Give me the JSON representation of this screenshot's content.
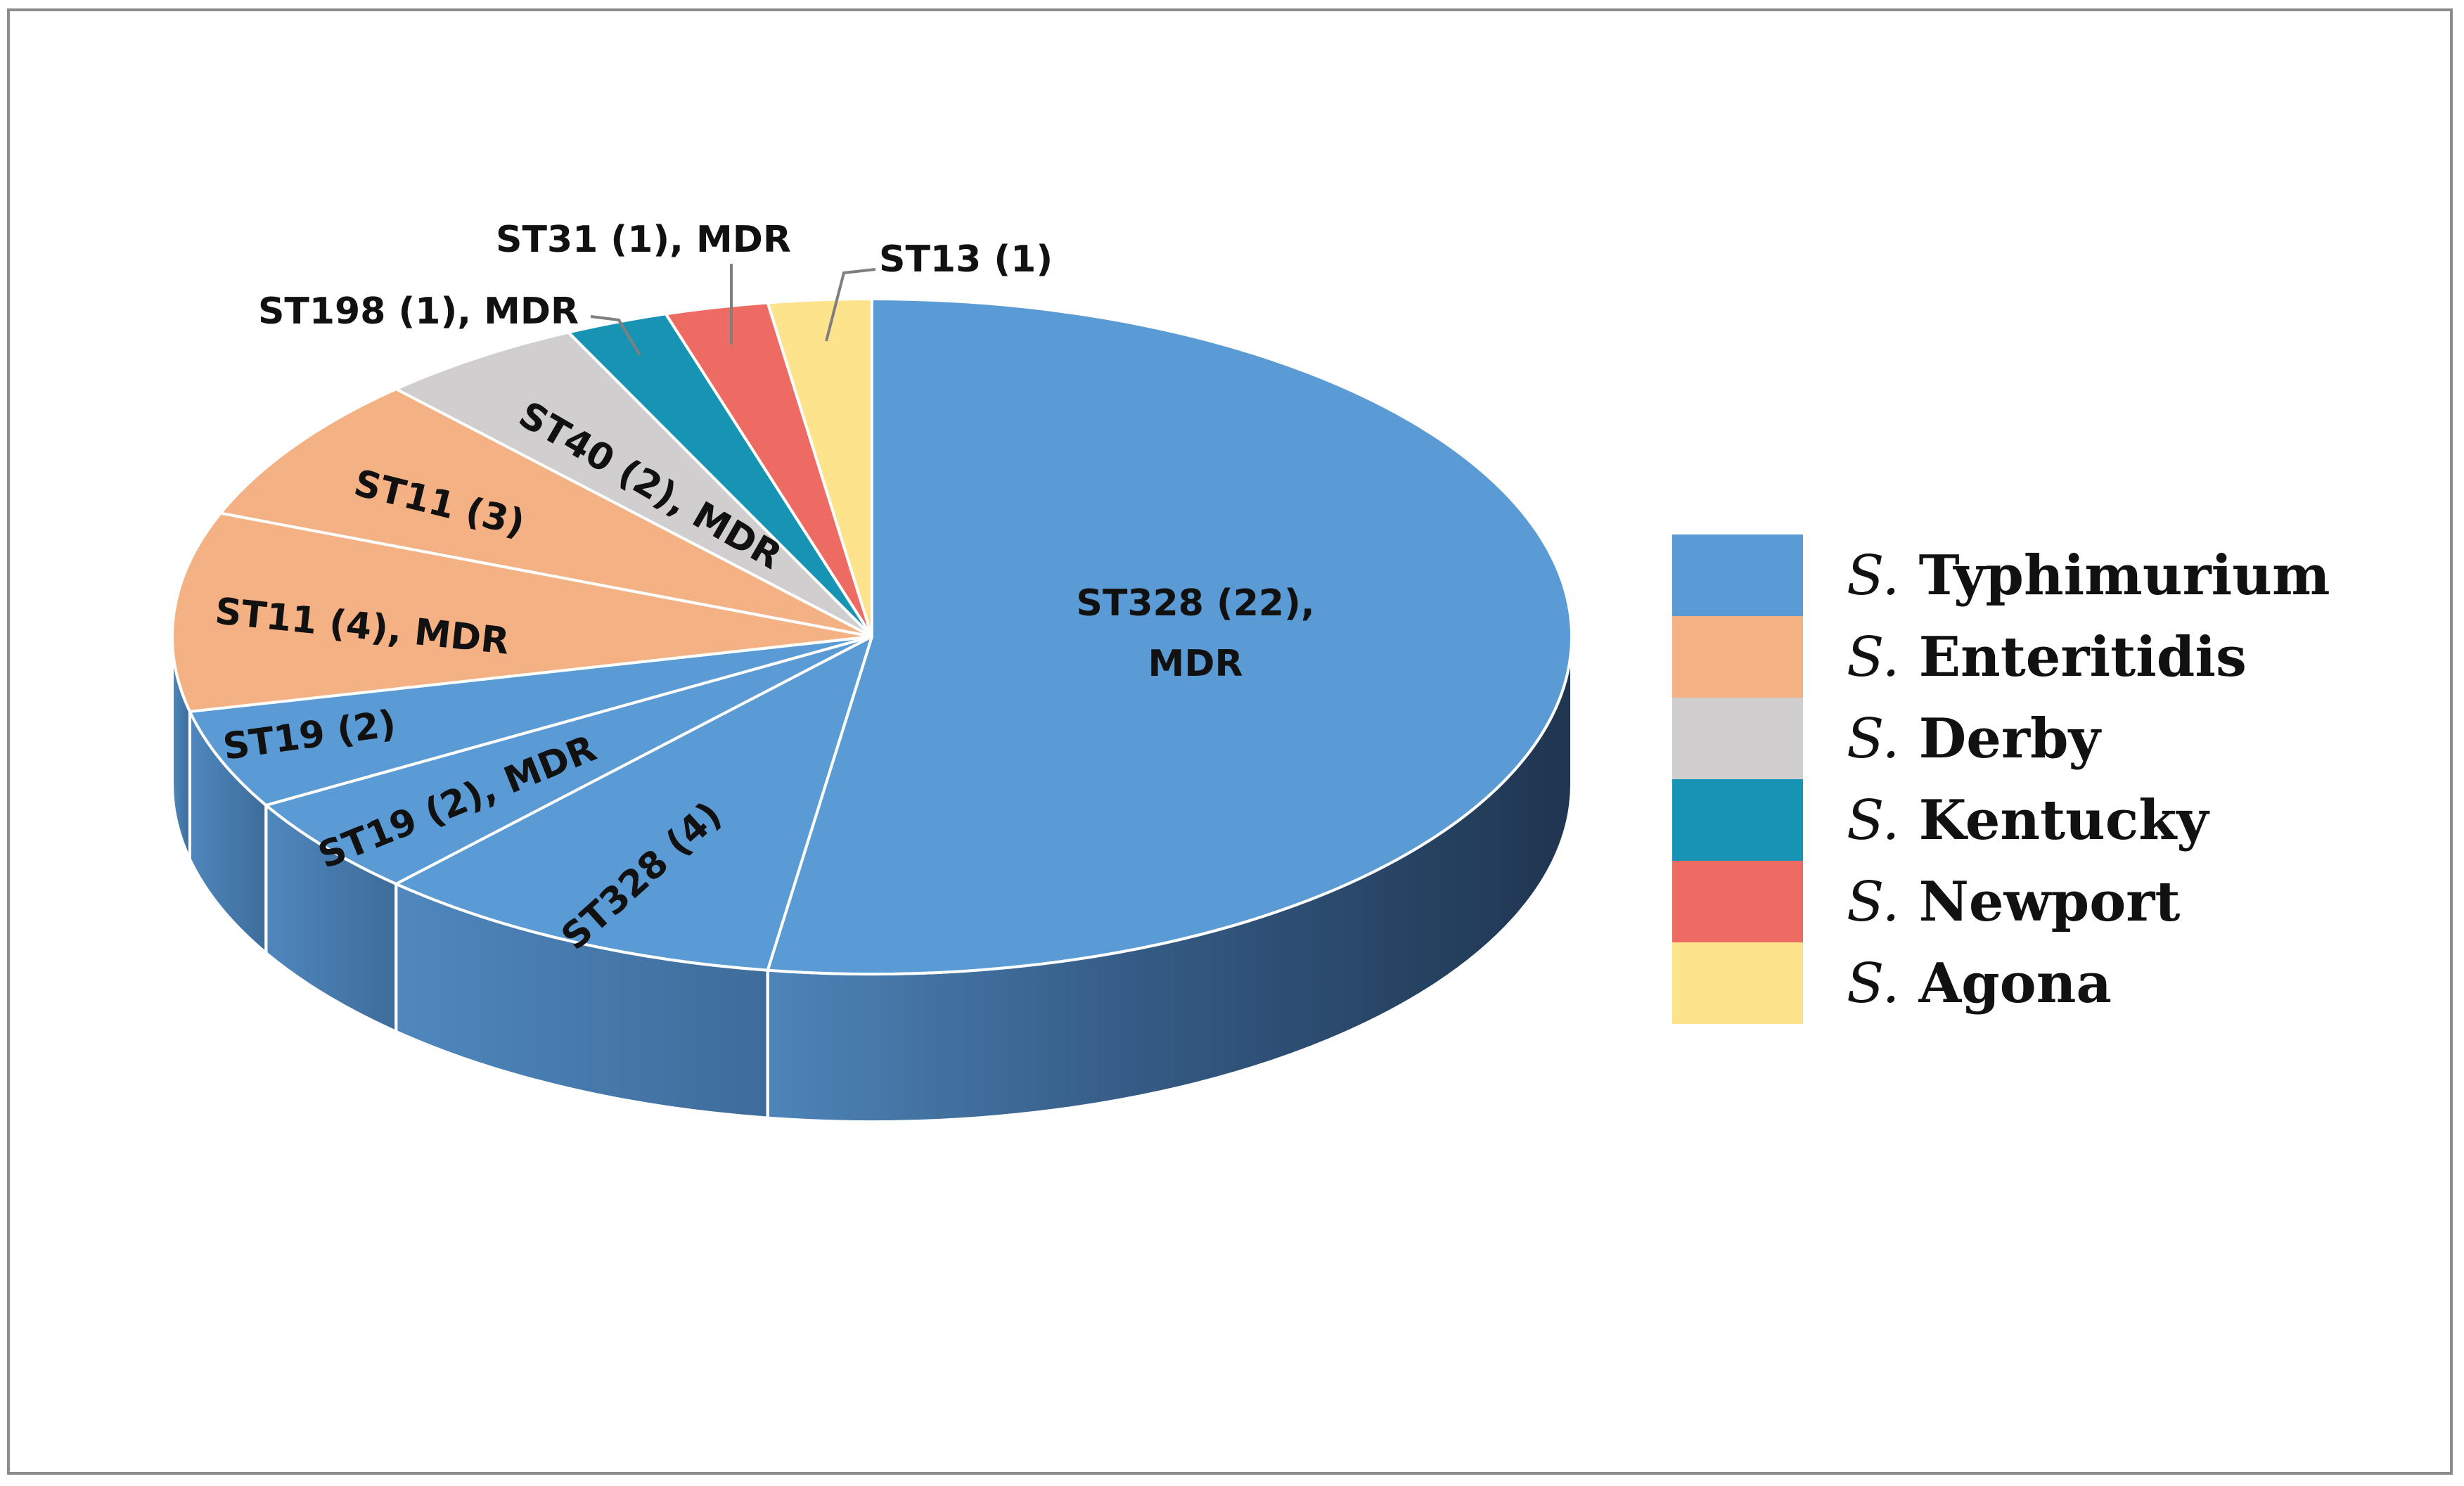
{
  "chart_data": {
    "type": "pie",
    "style": "3d",
    "start": "12 o'clock",
    "direction": "clockwise",
    "slices": [
      {
        "label_lines": [
          "ST328 (22),",
          "MDR"
        ],
        "value": 22,
        "group": "S. Typhimurium",
        "color": "#5B9BD5"
      },
      {
        "label_lines": [
          "ST328 (4)"
        ],
        "value": 4,
        "group": "S. Typhimurium",
        "color": "#5B9BD5"
      },
      {
        "label_lines": [
          "ST19 (2), MDR"
        ],
        "value": 2,
        "group": "S. Typhimurium",
        "color": "#5B9BD5"
      },
      {
        "label_lines": [
          "ST19 (2)"
        ],
        "value": 2,
        "group": "S. Typhimurium",
        "color": "#5B9BD5"
      },
      {
        "label_lines": [
          "ST11 (4), MDR"
        ],
        "value": 4,
        "group": "S. Enteritidis",
        "color": "#F4B183"
      },
      {
        "label_lines": [
          "ST11 (3)"
        ],
        "value": 3,
        "group": "S. Enteritidis",
        "color": "#F4B183"
      },
      {
        "label_lines": [
          "ST40 (2), MDR"
        ],
        "value": 2,
        "group": "S. Derby",
        "color": "#D0CECE"
      },
      {
        "label_lines": [
          "ST198 (1), MDR"
        ],
        "value": 1,
        "group": "S. Kentucky",
        "color": "#1794B4"
      },
      {
        "label_lines": [
          "ST31 (1), MDR"
        ],
        "value": 1,
        "group": "S. Newport",
        "color": "#EE6B64"
      },
      {
        "label_lines": [
          "ST13 (1)"
        ],
        "value": 1,
        "group": "S. Agona",
        "color": "#FCE38C"
      }
    ],
    "legend": {
      "placement": "right",
      "entries": [
        {
          "italic": "S.",
          "name": "Typhimurium",
          "color": "#5B9BD5"
        },
        {
          "italic": "S.",
          "name": "Enteritidis",
          "color": "#F4B183"
        },
        {
          "italic": "S.",
          "name": "Derby",
          "color": "#D0CECE"
        },
        {
          "italic": "S.",
          "name": "Kentucky",
          "color": "#1794B4"
        },
        {
          "italic": "S.",
          "name": "Newport",
          "color": "#EE6B64"
        },
        {
          "italic": "S.",
          "name": "Agona",
          "color": "#FCE38C"
        }
      ]
    }
  }
}
